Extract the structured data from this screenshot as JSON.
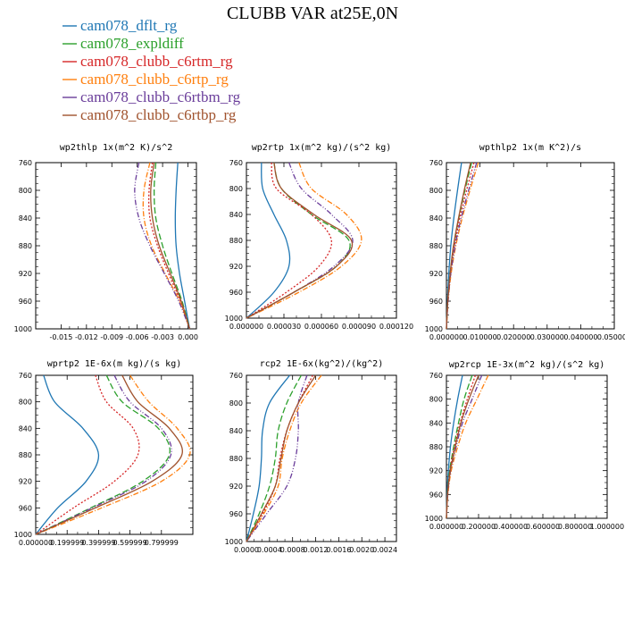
{
  "title": "CLUBB VAR at25E,0N",
  "legend": [
    {
      "name": "cam078_dflt_rg",
      "color": "#1f77b4",
      "dash": "solid"
    },
    {
      "name": "cam078_expldiff",
      "color": "#2ca02c",
      "dash": "longdash"
    },
    {
      "name": "cam078_clubb_c6rtm_rg",
      "color": "#d62728",
      "dash": "dot"
    },
    {
      "name": "cam078_clubb_c6rtp_rg",
      "color": "#ff7f0e",
      "dash": "dashdot"
    },
    {
      "name": "cam078_clubb_c6rtbm_rg",
      "color": "#6a3d9a",
      "dash": "dashdotdot"
    },
    {
      "name": "cam078_clubb_c6rtbp_rg",
      "color": "#a0522d",
      "dash": "solid"
    }
  ],
  "chart_data": [
    {
      "type": "line",
      "title": "wp2thlp  1x(m^2 K)/s^2",
      "y": [
        760,
        800,
        840,
        880,
        920,
        960,
        1000
      ],
      "xlim": [
        -0.018,
        0.001
      ],
      "ylim": [
        1000,
        760
      ],
      "xticks": [
        -0.015,
        -0.012,
        -0.009,
        -0.006,
        -0.003,
        0.0
      ],
      "xtick_labels": [
        "-0.015",
        "-0.012",
        "-0.009",
        "-0.006",
        "-0.003",
        "0.000"
      ],
      "yticks": [
        760,
        800,
        840,
        880,
        920,
        960,
        1000
      ],
      "series": [
        {
          "name": "cam078_dflt_rg",
          "values": [
            -0.0012,
            -0.0014,
            -0.0015,
            -0.0014,
            -0.001,
            -0.0004,
            0.0002
          ]
        },
        {
          "name": "cam078_expldiff",
          "values": [
            -0.0038,
            -0.004,
            -0.0038,
            -0.003,
            -0.0019,
            -0.0007,
            0.0002
          ]
        },
        {
          "name": "cam078_clubb_c6rtm_rg",
          "values": [
            -0.0042,
            -0.0046,
            -0.0045,
            -0.0036,
            -0.0023,
            -0.0009,
            0.0002
          ]
        },
        {
          "name": "cam078_clubb_c6rtp_rg",
          "values": [
            -0.0045,
            -0.0052,
            -0.0052,
            -0.0043,
            -0.0027,
            -0.001,
            0.0002
          ]
        },
        {
          "name": "cam078_clubb_c6rtbm_rg",
          "values": [
            -0.0058,
            -0.0063,
            -0.0058,
            -0.0045,
            -0.0028,
            -0.0011,
            0.0002
          ]
        },
        {
          "name": "cam078_clubb_c6rtbp_rg",
          "values": [
            -0.004,
            -0.0044,
            -0.0042,
            -0.0034,
            -0.0021,
            -0.0008,
            0.0002
          ]
        }
      ]
    },
    {
      "type": "line",
      "title": "wp2rtp  1x(m^2 kg)/(s^2 kg)",
      "y": [
        760,
        800,
        840,
        880,
        920,
        960,
        1000
      ],
      "xlim": [
        0.0,
        0.00012
      ],
      "ylim": [
        1000,
        760
      ],
      "xticks": [
        0.0,
        3e-05,
        6e-05,
        9e-05,
        0.00012
      ],
      "xtick_labels": [
        "0.000000",
        "0.000030",
        "0.000060",
        "0.000090",
        "0.000120"
      ],
      "yticks": [
        760,
        800,
        840,
        880,
        920,
        960,
        1000
      ],
      "series": [
        {
          "name": "cam078_dflt_rg",
          "values": [
            1.2e-05,
            1.3e-05,
            2.2e-05,
            3.2e-05,
            3.4e-05,
            2.2e-05,
            0.0
          ]
        },
        {
          "name": "cam078_expldiff",
          "values": [
            2.2e-05,
            2.8e-05,
            5.2e-05,
            8.2e-05,
            7.2e-05,
            3.8e-05,
            0.0
          ]
        },
        {
          "name": "cam078_clubb_c6rtm_rg",
          "values": [
            2e-05,
            2.4e-05,
            5.2e-05,
            6.8e-05,
            5.8e-05,
            3.2e-05,
            0.0
          ]
        },
        {
          "name": "cam078_clubb_c6rtp_rg",
          "values": [
            4.2e-05,
            5.2e-05,
            8e-05,
            9.2e-05,
            7.6e-05,
            4.2e-05,
            0.0
          ]
        },
        {
          "name": "cam078_clubb_c6rtbm_rg",
          "values": [
            3.4e-05,
            4.4e-05,
            6.8e-05,
            8.5e-05,
            7e-05,
            3.8e-05,
            0.0
          ]
        },
        {
          "name": "cam078_clubb_c6rtbp_rg",
          "values": [
            2.2e-05,
            2.8e-05,
            5.4e-05,
            8.4e-05,
            7.2e-05,
            3.8e-05,
            0.0
          ]
        }
      ]
    },
    {
      "type": "line",
      "title": "wpthlp2  1x(m K^2)/s",
      "y": [
        760,
        800,
        840,
        880,
        920,
        960,
        1000
      ],
      "xlim": [
        0.0,
        0.05
      ],
      "ylim": [
        1000,
        760
      ],
      "xticks": [
        0.0,
        0.01,
        0.02,
        0.03,
        0.04,
        0.05
      ],
      "xtick_labels": [
        "0.000000",
        "0.010000",
        "0.020000",
        "0.030000",
        "0.040000",
        "0.050000"
      ],
      "yticks": [
        760,
        800,
        840,
        880,
        920,
        960,
        1000
      ],
      "series": [
        {
          "name": "cam078_dflt_rg",
          "values": [
            0.0045,
            0.0033,
            0.0022,
            0.0013,
            0.0007,
            0.0003,
            0.0
          ]
        },
        {
          "name": "cam078_expldiff",
          "values": [
            0.0075,
            0.0055,
            0.0037,
            0.0022,
            0.0011,
            0.0004,
            0.0
          ]
        },
        {
          "name": "cam078_clubb_c6rtm_rg",
          "values": [
            0.0082,
            0.006,
            0.004,
            0.0024,
            0.0012,
            0.0004,
            0.0
          ]
        },
        {
          "name": "cam078_clubb_c6rtp_rg",
          "values": [
            0.0095,
            0.007,
            0.0047,
            0.0028,
            0.0014,
            0.0005,
            0.0
          ]
        },
        {
          "name": "cam078_clubb_c6rtbm_rg",
          "values": [
            0.009,
            0.0066,
            0.0044,
            0.0026,
            0.0013,
            0.0005,
            0.0
          ]
        },
        {
          "name": "cam078_clubb_c6rtbp_rg",
          "values": [
            0.0072,
            0.0053,
            0.0036,
            0.0021,
            0.0011,
            0.0004,
            0.0
          ]
        }
      ]
    },
    {
      "type": "line",
      "title": "wprtp2  1E-6x(m kg)/(s kg)",
      "y": [
        760,
        800,
        840,
        880,
        920,
        960,
        1000
      ],
      "xlim": [
        0.0,
        1.0
      ],
      "ylim": [
        1000,
        760
      ],
      "xticks": [
        0.0,
        0.2,
        0.4,
        0.6,
        0.8
      ],
      "xtick_labels": [
        "0.000000",
        "0.199999",
        "0.399999",
        "0.599999",
        "0.799999"
      ],
      "yticks": [
        760,
        800,
        840,
        880,
        920,
        960,
        1000
      ],
      "series": [
        {
          "name": "cam078_dflt_rg",
          "values": [
            0.05,
            0.12,
            0.3,
            0.4,
            0.32,
            0.14,
            0.0
          ]
        },
        {
          "name": "cam078_expldiff",
          "values": [
            0.45,
            0.55,
            0.78,
            0.85,
            0.68,
            0.35,
            0.0
          ]
        },
        {
          "name": "cam078_clubb_c6rtm_rg",
          "values": [
            0.38,
            0.45,
            0.62,
            0.65,
            0.5,
            0.24,
            0.0
          ]
        },
        {
          "name": "cam078_clubb_c6rtp_rg",
          "values": [
            0.6,
            0.72,
            0.9,
            0.98,
            0.8,
            0.42,
            0.0
          ]
        },
        {
          "name": "cam078_clubb_c6rtbm_rg",
          "values": [
            0.5,
            0.6,
            0.8,
            0.86,
            0.7,
            0.36,
            0.0
          ]
        },
        {
          "name": "cam078_clubb_c6rtbp_rg",
          "values": [
            0.55,
            0.65,
            0.85,
            0.93,
            0.74,
            0.38,
            0.0
          ]
        }
      ]
    },
    {
      "type": "line",
      "title": "rcp2  1E-6x(kg^2)/(kg^2)",
      "y": [
        760,
        800,
        840,
        880,
        920,
        960,
        1000
      ],
      "xlim": [
        0.0,
        0.0026
      ],
      "ylim": [
        1000,
        760
      ],
      "xticks": [
        0.0,
        0.0004,
        0.0008,
        0.0012,
        0.0016,
        0.002,
        0.0024
      ],
      "xtick_labels": [
        "0.0000",
        "0.0004",
        "0.0008",
        "0.0012",
        "0.0016",
        "0.0020",
        "0.0024"
      ],
      "yticks": [
        760,
        800,
        840,
        880,
        920,
        960,
        1000
      ],
      "series": [
        {
          "name": "cam078_dflt_rg",
          "values": [
            0.00075,
            0.0004,
            0.00028,
            0.00026,
            0.00022,
            0.00012,
            0.0
          ]
        },
        {
          "name": "cam078_expldiff",
          "values": [
            0.00095,
            0.0007,
            0.00055,
            0.0005,
            0.0004,
            0.00022,
            0.0
          ]
        },
        {
          "name": "cam078_clubb_c6rtm_rg",
          "values": [
            0.00115,
            0.0009,
            0.0007,
            0.00058,
            0.0005,
            0.00028,
            0.0
          ]
        },
        {
          "name": "cam078_clubb_c6rtp_rg",
          "values": [
            0.0013,
            0.00095,
            0.00075,
            0.00062,
            0.00055,
            0.0003,
            0.0
          ]
        },
        {
          "name": "cam078_clubb_c6rtbm_rg",
          "values": [
            0.00105,
            0.0009,
            0.0009,
            0.00085,
            0.0007,
            0.00035,
            0.0
          ]
        },
        {
          "name": "cam078_clubb_c6rtbp_rg",
          "values": [
            0.0012,
            0.0009,
            0.0007,
            0.0006,
            0.0005,
            0.00026,
            0.0
          ]
        }
      ]
    },
    {
      "type": "line",
      "title": "wp2rcp  1E-3x(m^2 kg)/(s^2 kg)",
      "y": [
        760,
        800,
        840,
        880,
        920,
        960,
        1000
      ],
      "xlim": [
        0.0,
        1.0
      ],
      "ylim": [
        1000,
        760
      ],
      "xticks": [
        0.0,
        0.2,
        0.4,
        0.6,
        0.8,
        1.0
      ],
      "xtick_labels": [
        "0.000000",
        "0.200000",
        "0.400000",
        "0.600000",
        "0.800000",
        "1.000000"
      ],
      "yticks": [
        760,
        800,
        840,
        880,
        920,
        960,
        1000
      ],
      "series": [
        {
          "name": "cam078_dflt_rg",
          "values": [
            0.1,
            0.07,
            0.045,
            0.025,
            0.012,
            0.004,
            0.0
          ]
        },
        {
          "name": "cam078_expldiff",
          "values": [
            0.16,
            0.11,
            0.075,
            0.045,
            0.02,
            0.006,
            0.0
          ]
        },
        {
          "name": "cam078_clubb_c6rtm_rg",
          "values": [
            0.18,
            0.13,
            0.085,
            0.05,
            0.022,
            0.007,
            0.0
          ]
        },
        {
          "name": "cam078_clubb_c6rtp_rg",
          "values": [
            0.26,
            0.19,
            0.12,
            0.07,
            0.03,
            0.009,
            0.0
          ]
        },
        {
          "name": "cam078_clubb_c6rtbm_rg",
          "values": [
            0.22,
            0.16,
            0.1,
            0.06,
            0.026,
            0.008,
            0.0
          ]
        },
        {
          "name": "cam078_clubb_c6rtbp_rg",
          "values": [
            0.2,
            0.14,
            0.09,
            0.055,
            0.024,
            0.007,
            0.0
          ]
        }
      ]
    }
  ]
}
